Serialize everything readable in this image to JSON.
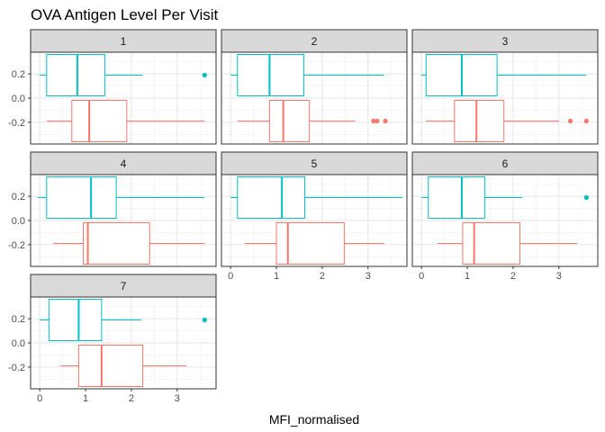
{
  "chart_data": {
    "type": "boxplot",
    "title": "OVA Antigen Level Per Visit",
    "xlabel": "MFI_normalised",
    "ylabel": "",
    "xlim": [
      -0.2,
      3.85
    ],
    "ylim": [
      -0.38,
      0.38
    ],
    "x_ticks": [
      0,
      1,
      2,
      3
    ],
    "y_ticks": [
      0.2,
      0.0,
      -0.2
    ],
    "y_tick_labels": [
      "0.2",
      "0.0",
      "-0.2"
    ],
    "grid": true,
    "legend": "none",
    "layout": "3-column facet grid",
    "series_colors": [
      "#00BFC4",
      "#F8766D"
    ],
    "strip_color": "#d9d9d9",
    "facets": [
      {
        "label": "1",
        "boxes": [
          {
            "color": "#00BFC4",
            "y": 0.19,
            "whisker_low": 0.0,
            "q1": 0.15,
            "median": 0.82,
            "q3": 1.42,
            "whisker_high": 2.25,
            "outliers": [
              3.6
            ]
          },
          {
            "color": "#F8766D",
            "y": -0.19,
            "whisker_low": 0.15,
            "q1": 0.7,
            "median": 1.08,
            "q3": 1.9,
            "whisker_high": 3.6,
            "outliers": []
          }
        ]
      },
      {
        "label": "2",
        "boxes": [
          {
            "color": "#00BFC4",
            "y": 0.19,
            "whisker_low": 0.0,
            "q1": 0.15,
            "median": 0.85,
            "q3": 1.6,
            "whisker_high": 3.35,
            "outliers": []
          },
          {
            "color": "#F8766D",
            "y": -0.19,
            "whisker_low": 0.15,
            "q1": 0.85,
            "median": 1.15,
            "q3": 1.72,
            "whisker_high": 2.72,
            "outliers": [
              3.12,
              3.2,
              3.38
            ]
          }
        ]
      },
      {
        "label": "3",
        "boxes": [
          {
            "color": "#00BFC4",
            "y": 0.19,
            "whisker_low": 0.0,
            "q1": 0.1,
            "median": 0.88,
            "q3": 1.65,
            "whisker_high": 3.6,
            "outliers": []
          },
          {
            "color": "#F8766D",
            "y": -0.19,
            "whisker_low": 0.1,
            "q1": 0.72,
            "median": 1.2,
            "q3": 1.8,
            "whisker_high": 3.0,
            "outliers": [
              3.25,
              3.6
            ]
          }
        ]
      },
      {
        "label": "4",
        "boxes": [
          {
            "color": "#00BFC4",
            "y": 0.19,
            "whisker_low": -0.05,
            "q1": 0.15,
            "median": 1.12,
            "q3": 1.67,
            "whisker_high": 3.6,
            "outliers": []
          },
          {
            "color": "#F8766D",
            "y": -0.19,
            "whisker_low": 0.3,
            "q1": 0.95,
            "median": 1.05,
            "q3": 2.4,
            "whisker_high": 3.6,
            "outliers": []
          }
        ]
      },
      {
        "label": "5",
        "boxes": [
          {
            "color": "#00BFC4",
            "y": 0.19,
            "whisker_low": 0.0,
            "q1": 0.15,
            "median": 1.12,
            "q3": 1.62,
            "whisker_high": 3.75,
            "outliers": []
          },
          {
            "color": "#F8766D",
            "y": -0.19,
            "whisker_low": 0.3,
            "q1": 1.0,
            "median": 1.25,
            "q3": 2.48,
            "whisker_high": 3.35,
            "outliers": []
          }
        ]
      },
      {
        "label": "6",
        "boxes": [
          {
            "color": "#00BFC4",
            "y": 0.19,
            "whisker_low": 0.0,
            "q1": 0.15,
            "median": 0.88,
            "q3": 1.38,
            "whisker_high": 2.2,
            "outliers": [
              3.6
            ]
          },
          {
            "color": "#F8766D",
            "y": -0.19,
            "whisker_low": 0.35,
            "q1": 0.9,
            "median": 1.15,
            "q3": 2.15,
            "whisker_high": 3.4,
            "outliers": []
          }
        ]
      },
      {
        "label": "7",
        "boxes": [
          {
            "color": "#00BFC4",
            "y": 0.19,
            "whisker_low": 0.0,
            "q1": 0.2,
            "median": 0.85,
            "q3": 1.35,
            "whisker_high": 2.22,
            "outliers": [
              3.6
            ]
          },
          {
            "color": "#F8766D",
            "y": -0.19,
            "whisker_low": 0.45,
            "q1": 0.85,
            "median": 1.35,
            "q3": 2.25,
            "whisker_high": 3.2,
            "outliers": []
          }
        ]
      }
    ]
  }
}
